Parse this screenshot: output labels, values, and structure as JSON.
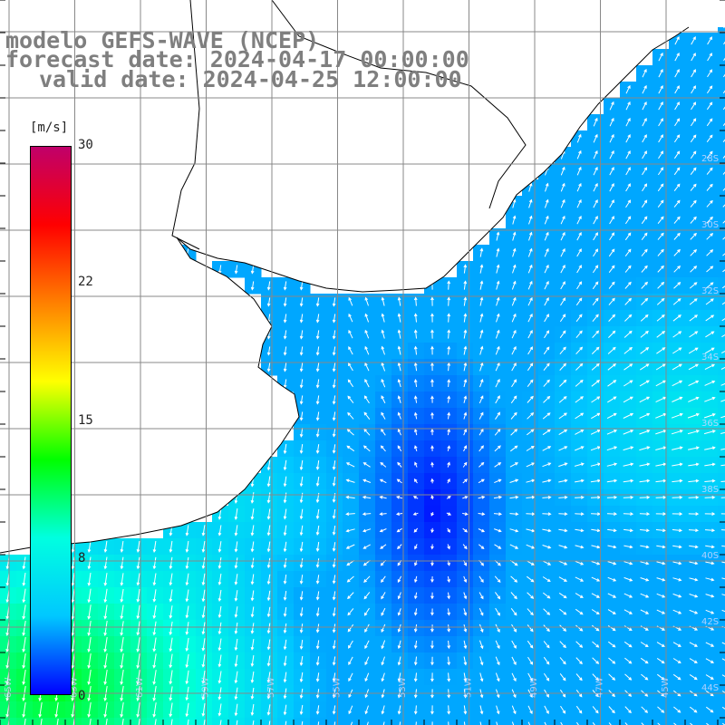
{
  "title": {
    "line1": "modelo GEFS-WAVE (NCEP)",
    "line2": "forecast date: 2024-04-17 00:00:00",
    "line3": "valid date: 2024-04-25 12:00:00"
  },
  "colorbar": {
    "unit": "[m/s]",
    "min": 0,
    "max": 30,
    "ticks": [
      "30",
      "22",
      "15",
      "8",
      "0"
    ],
    "stops": [
      "#0000ff",
      "#00c8ff",
      "#00ffe0",
      "#00ff00",
      "#ffff00",
      "#ff8000",
      "#ff0000",
      "#c0006a"
    ]
  },
  "map": {
    "field": "wind speed (m/s) with wind direction arrows",
    "land_color": "#ffffff",
    "arrow_color": "#ffffff",
    "grid_color": "#888888"
  },
  "lat_labels": [
    "28S",
    "30S",
    "32S",
    "34S",
    "36S",
    "38S",
    "40S",
    "42S",
    "44S"
  ],
  "lon_labels": [
    "65W",
    "63W",
    "61W",
    "59W",
    "57W",
    "55W",
    "53W",
    "51W",
    "49W",
    "47W",
    "45W"
  ]
}
